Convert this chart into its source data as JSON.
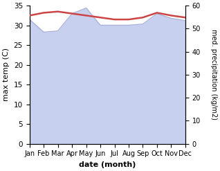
{
  "months": [
    "Jan",
    "Feb",
    "Mar",
    "Apr",
    "May",
    "Jun",
    "Jul",
    "Aug",
    "Sep",
    "Oct",
    "Nov",
    "Dec"
  ],
  "x": [
    0,
    1,
    2,
    3,
    4,
    5,
    6,
    7,
    8,
    9,
    10,
    11
  ],
  "temp_max": [
    32.5,
    33.2,
    33.5,
    33.0,
    32.5,
    32.0,
    31.5,
    31.5,
    32.0,
    33.2,
    32.5,
    32.0
  ],
  "precipitation": [
    54.0,
    48.5,
    49.0,
    56.5,
    59.0,
    51.5,
    51.5,
    51.5,
    52.0,
    56.5,
    54.5,
    53.5
  ],
  "temp_color": "#cc4444",
  "precip_color": "#aab4d8",
  "precip_fill_color": "#c8d0f0",
  "temp_ylim": [
    0,
    35
  ],
  "precip_ylim": [
    0,
    60
  ],
  "temp_yticks": [
    0,
    5,
    10,
    15,
    20,
    25,
    30,
    35
  ],
  "precip_yticks": [
    0,
    10,
    20,
    30,
    40,
    50,
    60
  ],
  "ylabel_left": "max temp (C)",
  "ylabel_right": "med. precipitation (kg/m2)",
  "xlabel": "date (month)",
  "bg_color": "#ffffff"
}
